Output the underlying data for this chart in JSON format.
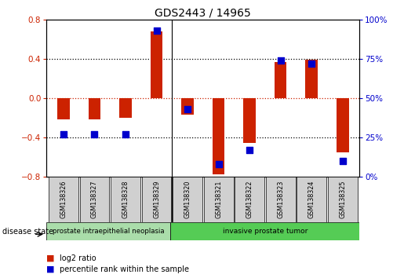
{
  "title": "GDS2443 / 14965",
  "samples": [
    "GSM138326",
    "GSM138327",
    "GSM138328",
    "GSM138329",
    "GSM138320",
    "GSM138321",
    "GSM138322",
    "GSM138323",
    "GSM138324",
    "GSM138325"
  ],
  "log2_ratio": [
    -0.22,
    -0.22,
    -0.2,
    0.68,
    -0.17,
    -0.78,
    -0.46,
    0.37,
    0.39,
    -0.55
  ],
  "percentile_rank": [
    27,
    27,
    27,
    93,
    43,
    8,
    17,
    74,
    72,
    10
  ],
  "disease_groups": [
    {
      "label": "prostate intraepithelial neoplasia",
      "n": 4,
      "color": "#aaddaa"
    },
    {
      "label": "invasive prostate tumor",
      "n": 6,
      "color": "#55cc55"
    }
  ],
  "ylim_left": [
    -0.8,
    0.8
  ],
  "ylim_right": [
    0,
    100
  ],
  "yticks_left": [
    -0.8,
    -0.4,
    0,
    0.4,
    0.8
  ],
  "yticks_right": [
    0,
    25,
    50,
    75,
    100
  ],
  "bar_color": "#cc2200",
  "dot_color": "#0000cc",
  "bar_width": 0.4,
  "dot_size": 28,
  "legend_log2": "log2 ratio",
  "legend_pct": "percentile rank within the sample",
  "disease_state_label": "disease state",
  "hline_color": "#cc2200",
  "grid_color": "#000000"
}
